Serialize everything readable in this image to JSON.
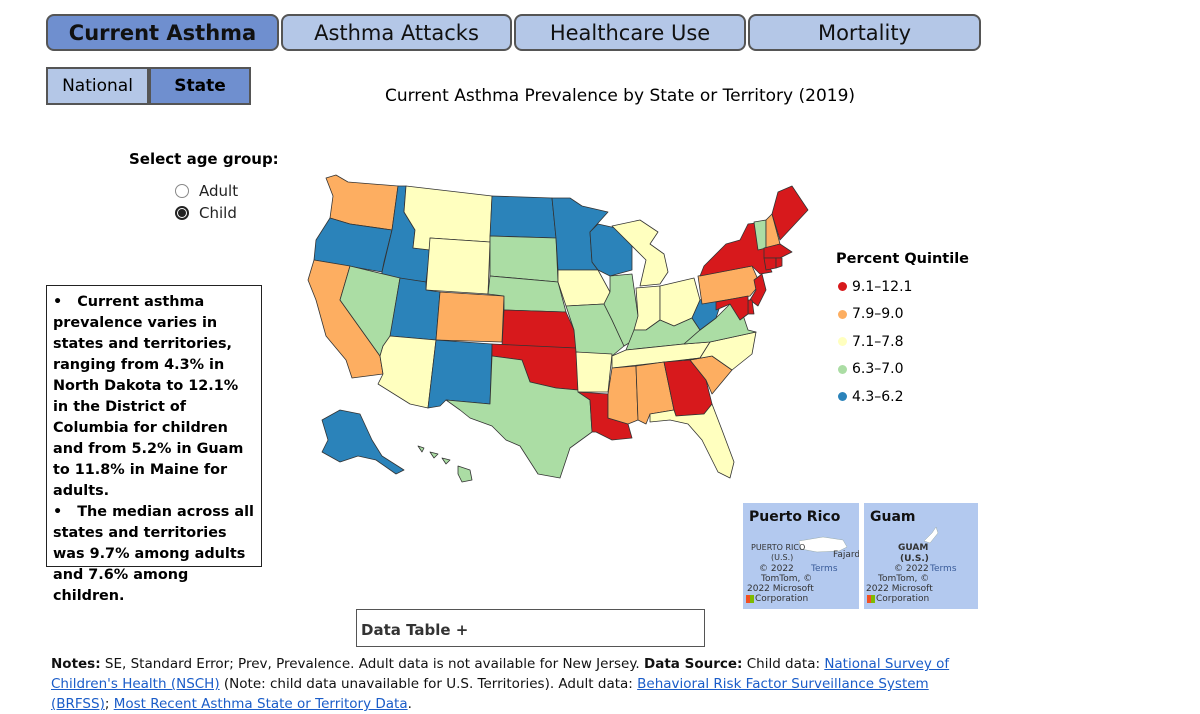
{
  "tabs": [
    {
      "label": "Current Asthma",
      "active": true
    },
    {
      "label": "Asthma Attacks",
      "active": false
    },
    {
      "label": "Healthcare Use",
      "active": false
    },
    {
      "label": "Mortality",
      "active": false
    }
  ],
  "subtabs": [
    {
      "label": "National",
      "active": false
    },
    {
      "label": "State",
      "active": true
    }
  ],
  "chart_title": "Current Asthma Prevalence by State or Territory (2019)",
  "age_group": {
    "label": "Select age group:",
    "options": [
      {
        "label": "Adult",
        "checked": false
      },
      {
        "label": "Child",
        "checked": true
      }
    ]
  },
  "summary": {
    "p1": "Current asthma prevalence varies in states and territories, ranging from 4.3% in North Dakota to 12.1% in the District of Columbia for children and from 5.2% in Guam to 11.8% in Maine for adults.",
    "p2": "The median across all states and territories was 9.7% among adults and 7.6% among children."
  },
  "legend": {
    "title": "Percent Quintile",
    "items": [
      {
        "label": "9.1–12.1",
        "color": "#d7191c"
      },
      {
        "label": "7.9–9.0",
        "color": "#fdae61"
      },
      {
        "label": "7.1–7.8",
        "color": "#ffffbf"
      },
      {
        "label": "6.3–7.0",
        "color": "#abdda4"
      },
      {
        "label": "4.3–6.2",
        "color": "#2b83ba"
      }
    ]
  },
  "insets": {
    "puerto_rico": {
      "title": "Puerto Rico",
      "place": "PUERTO RICO",
      "sub": "(U.S.)",
      "city": "Fajard",
      "credit1": "© 2022",
      "credit_terms": "Terms",
      "credit2": "TomTom, ©",
      "credit3": "2022 Microsoft",
      "credit4": "Corporation"
    },
    "guam": {
      "title": "Guam",
      "place": "GUAM",
      "sub": "(U.S.)",
      "credit1": "© 2022",
      "credit_terms": "Terms",
      "credit2": "TomTom, ©",
      "credit3": "2022 Microsoft",
      "credit4": "Corporation"
    }
  },
  "data_table_label": "Data Table +",
  "notes": {
    "notes_label": "Notes:",
    "notes_text": " SE, Standard Error; Prev, Prevalence. Adult data is not available for New Jersey. ",
    "source_label": "Data Source:",
    "child_text": " Child data: ",
    "nsch_link": "National Survey of Children's Health (NSCH)",
    "child_note": " (Note: child data unavailable for U.S. Territories). Adult data: ",
    "brfss_link": "Behavioral Risk Factor Surveillance System (BRFSS)",
    "sep": "; ",
    "recent_link": "Most Recent Asthma State or Territory Data",
    "end": "."
  },
  "state_quintiles": {
    "WA": "7.9–9.0",
    "OR": "4.3–6.2",
    "CA": "7.9–9.0",
    "ID": "4.3–6.2",
    "NV": "6.3–7.0",
    "MT": "7.1–7.8",
    "WY": "7.1–7.8",
    "UT": "4.3–6.2",
    "AZ": "7.1–7.8",
    "CO": "7.9–9.0",
    "NM": "4.3–6.2",
    "ND": "4.3–6.2",
    "SD": "6.3–7.0",
    "NE": "6.3–7.0",
    "KS": "9.1–12.1",
    "OK": "9.1–12.1",
    "TX": "6.3–7.0",
    "MN": "4.3–6.2",
    "IA": "7.1–7.8",
    "MO": "6.3–7.0",
    "AR": "7.1–7.8",
    "LA": "9.1–12.1",
    "WI": "4.3–6.2",
    "IL": "6.3–7.0",
    "MI": "7.1–7.8",
    "IN": "7.1–7.8",
    "OH": "7.1–7.8",
    "KY": "6.3–7.0",
    "TN": "7.1–7.8",
    "MS": "7.9–9.0",
    "AL": "7.9–9.0",
    "GA": "9.1–12.1",
    "FL": "7.1–7.8",
    "SC": "7.9–9.0",
    "NC": "7.1–7.8",
    "VA": "6.3–7.0",
    "WV": "4.3–6.2",
    "PA": "7.9–9.0",
    "NY": "9.1–12.1",
    "VT": "6.3–7.0",
    "NH": "7.9–9.0",
    "ME": "9.1–12.1",
    "MA": "9.1–12.1",
    "CT": "9.1–12.1",
    "RI": "9.1–12.1",
    "NJ": "9.1–12.1",
    "DE": "9.1–12.1",
    "MD": "9.1–12.1",
    "AK": "4.3–6.2",
    "HI": "6.3–7.0"
  }
}
